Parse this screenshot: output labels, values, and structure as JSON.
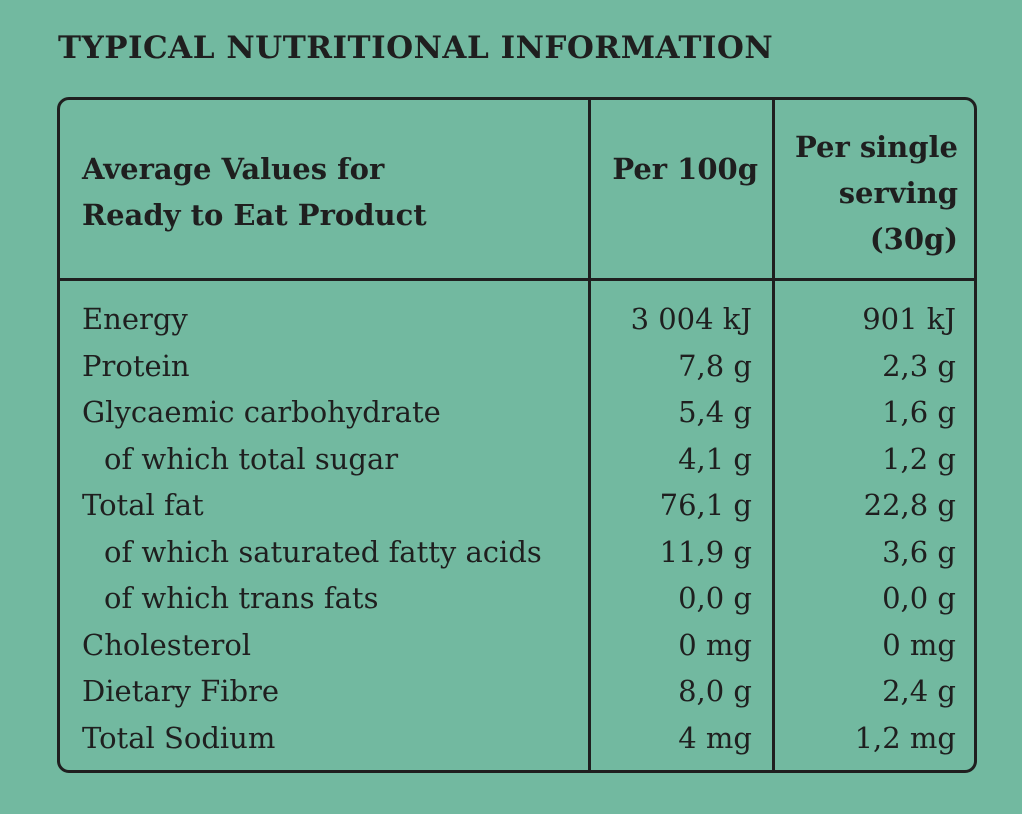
{
  "title": "TYPICAL NUTRITIONAL INFORMATION",
  "header": {
    "label_line1": "Average Values for",
    "label_line2": "Ready to Eat Product",
    "per_100g": "Per 100g",
    "per_serving_line1": "Per single",
    "per_serving_line2": "serving",
    "per_serving_line3": "(30g)"
  },
  "rows": [
    {
      "label": "Energy",
      "per_100g": "3 004 kJ",
      "per_serving": "901 kJ"
    },
    {
      "label": "Protein",
      "per_100g": "7,8 g",
      "per_serving": "2,3 g"
    },
    {
      "label": "Glycaemic carbohydrate",
      "per_100g": "5,4 g",
      "per_serving": "1,6 g"
    },
    {
      "label": "of which total sugar",
      "per_100g": "4,1 g",
      "per_serving": "1,2 g"
    },
    {
      "label": "Total fat",
      "per_100g": "76,1 g",
      "per_serving": "22,8 g"
    },
    {
      "label": "of which saturated fatty acids",
      "per_100g": "11,9 g",
      "per_serving": "3,6 g"
    },
    {
      "label": "of which trans fats",
      "per_100g": "0,0 g",
      "per_serving": "0,0 g"
    },
    {
      "label": "Cholesterol",
      "per_100g": "0 mg",
      "per_serving": "0 mg"
    },
    {
      "label": "Dietary Fibre",
      "per_100g": "8,0 g",
      "per_serving": "2,4 g"
    },
    {
      "label": "Total Sodium",
      "per_100g": "4 mg",
      "per_serving": "1,2 mg"
    }
  ],
  "colors": {
    "background": "#72b9a0",
    "ink": "#1f1f1f"
  }
}
